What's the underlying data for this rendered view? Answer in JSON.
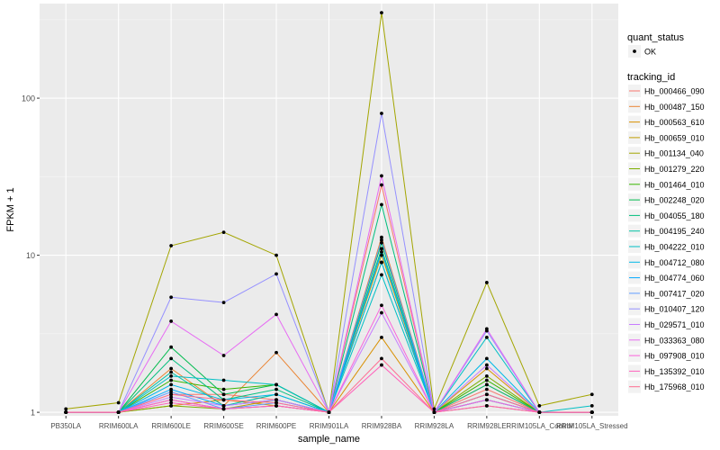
{
  "chart_data": {
    "type": "line",
    "title": "",
    "xlabel": "sample_name",
    "ylabel": "FPKM + 1",
    "y_scale": "log10",
    "ylim": [
      0.95,
      400
    ],
    "y_ticks": [
      1,
      10,
      100
    ],
    "y_tick_labels": [
      "1",
      "10",
      "100"
    ],
    "grid": true,
    "categories": [
      "PB350LA",
      "RRIM600LA",
      "RRIM600LE",
      "RRIM600SE",
      "RRIM600PE",
      "RRIM901LA",
      "RRIM928BA",
      "RRIM928LA",
      "RRIM928LE",
      "RRIM105LA_Control",
      "RRIM105LA_Stressed"
    ],
    "legend_position": "right",
    "point_legend": {
      "title": "quant_status",
      "items": [
        {
          "label": "OK"
        }
      ]
    },
    "color_legend_title": "tracking_id",
    "point_color": "#000000",
    "series": [
      {
        "name": "Hb_000466_090",
        "color": "#F8766D",
        "values": [
          1.0,
          1.0,
          1.3,
          1.3,
          1.2,
          1.0,
          28,
          1.0,
          1.4,
          1.0,
          1.0
        ]
      },
      {
        "name": "Hb_000487_150",
        "color": "#EA8331",
        "values": [
          1.0,
          1.0,
          1.9,
          1.1,
          2.4,
          1.0,
          13,
          1.0,
          1.5,
          1.0,
          1.0
        ]
      },
      {
        "name": "Hb_000563_610",
        "color": "#D89000",
        "values": [
          1.0,
          1.0,
          1.1,
          1.2,
          1.1,
          1.0,
          3.0,
          1.0,
          1.9,
          1.0,
          1.0
        ]
      },
      {
        "name": "Hb_000659_010",
        "color": "#C09B00",
        "values": [
          1.0,
          1.0,
          1.2,
          1.05,
          1.2,
          1.0,
          10,
          1.0,
          1.1,
          1.0,
          1.0
        ]
      },
      {
        "name": "Hb_001134_040",
        "color": "#A3A500",
        "values": [
          1.05,
          1.15,
          11.5,
          14,
          10,
          1.0,
          350,
          1.05,
          6.7,
          1.1,
          1.3
        ]
      },
      {
        "name": "Hb_001279_220",
        "color": "#7CAE00",
        "values": [
          1.0,
          1.0,
          1.1,
          1.05,
          1.1,
          1.0,
          11,
          1.0,
          1.7,
          1.0,
          1.0
        ]
      },
      {
        "name": "Hb_001464_010",
        "color": "#39B600",
        "values": [
          1.0,
          1.0,
          1.6,
          1.4,
          1.5,
          1.0,
          9,
          1.0,
          1.6,
          1.0,
          1.0
        ]
      },
      {
        "name": "Hb_002248_020",
        "color": "#00BB4E",
        "values": [
          1.0,
          1.0,
          2.6,
          1.3,
          1.5,
          1.0,
          12,
          1.0,
          1.3,
          1.0,
          1.0
        ]
      },
      {
        "name": "Hb_004055_180",
        "color": "#00BF7D",
        "values": [
          1.0,
          1.0,
          2.2,
          1.2,
          1.4,
          1.0,
          21,
          1.0,
          1.5,
          1.0,
          1.0
        ]
      },
      {
        "name": "Hb_004195_240",
        "color": "#00C1A3",
        "values": [
          1.0,
          1.0,
          1.8,
          1.1,
          1.3,
          1.0,
          11,
          1.0,
          1.2,
          1.0,
          1.0
        ]
      },
      {
        "name": "Hb_004222_010",
        "color": "#00BFC4",
        "values": [
          1.0,
          1.0,
          1.7,
          1.6,
          1.5,
          1.0,
          7.5,
          1.0,
          3.0,
          1.0,
          1.1
        ]
      },
      {
        "name": "Hb_004712_080",
        "color": "#00B8E7",
        "values": [
          1.0,
          1.0,
          1.5,
          1.2,
          1.3,
          1.0,
          9,
          1.0,
          2.2,
          1.0,
          1.0
        ]
      },
      {
        "name": "Hb_004774_060",
        "color": "#00A9FF",
        "values": [
          1.0,
          1.0,
          1.4,
          1.1,
          1.2,
          1.0,
          10.5,
          1.0,
          1.2,
          1.0,
          1.0
        ]
      },
      {
        "name": "Hb_007417_020",
        "color": "#619CFF",
        "values": [
          1.0,
          1.0,
          1.35,
          1.05,
          1.15,
          1.0,
          12.5,
          1.0,
          1.3,
          1.0,
          1.0
        ]
      },
      {
        "name": "Hb_010407_120",
        "color": "#9590FF",
        "values": [
          1.0,
          1.0,
          5.4,
          5.0,
          7.6,
          1.0,
          80,
          1.0,
          3.3,
          1.0,
          1.0
        ]
      },
      {
        "name": "Hb_029571_010",
        "color": "#C77CFF",
        "values": [
          1.0,
          1.0,
          1.25,
          1.1,
          1.2,
          1.0,
          4.3,
          1.0,
          2.0,
          1.0,
          1.0
        ]
      },
      {
        "name": "Hb_033363_080",
        "color": "#E76BF3",
        "values": [
          1.0,
          1.0,
          3.8,
          2.3,
          4.2,
          1.0,
          32,
          1.0,
          3.4,
          1.0,
          1.0
        ]
      },
      {
        "name": "Hb_097908_010",
        "color": "#FA62DB",
        "values": [
          1.0,
          1.0,
          1.2,
          1.05,
          1.1,
          1.0,
          4.8,
          1.0,
          1.2,
          1.0,
          1.0
        ]
      },
      {
        "name": "Hb_135392_010",
        "color": "#FF62BC",
        "values": [
          1.0,
          1.0,
          1.15,
          1.05,
          1.1,
          1.0,
          2.0,
          1.0,
          1.1,
          1.0,
          1.0
        ]
      },
      {
        "name": "Hb_175968_010",
        "color": "#FF6C91",
        "values": [
          1.0,
          1.0,
          1.3,
          1.2,
          1.15,
          1.0,
          2.2,
          1.0,
          1.3,
          1.0,
          1.0
        ]
      }
    ]
  }
}
